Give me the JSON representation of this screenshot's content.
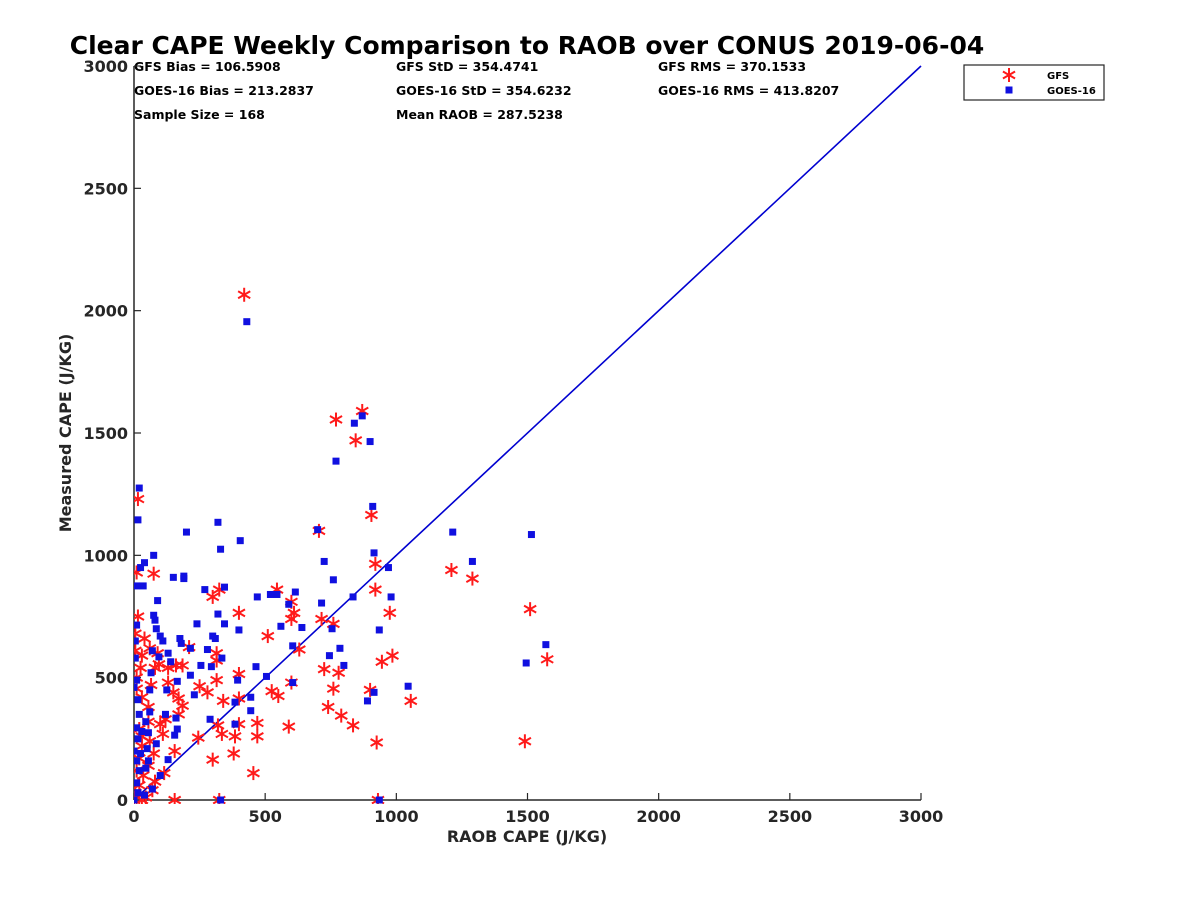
{
  "chart_data": {
    "type": "scatter",
    "title": "Clear CAPE Weekly Comparison to RAOB over CONUS 2019-06-04",
    "xlabel": "RAOB CAPE (J/KG)",
    "ylabel": "Measured CAPE (J/KG)",
    "xlim": [
      0,
      3000
    ],
    "ylim": [
      0,
      3000
    ],
    "xticks": [
      "0",
      "500",
      "1000",
      "1500",
      "2000",
      "2500",
      "3000"
    ],
    "yticks": [
      "0",
      "500",
      "1000",
      "1500",
      "2000",
      "2500",
      "3000"
    ],
    "grid": false,
    "legend_position": "top-right",
    "reference_line": {
      "x": [
        0,
        3000
      ],
      "y": [
        0,
        3000
      ],
      "color": "#0000d0"
    },
    "stats": [
      "GFS Bias = 106.5908",
      "GFS StD = 354.4741",
      "GFS RMS = 370.1533",
      "GOES-16 Bias = 213.2837",
      "GOES-16 StD = 354.6232",
      "GOES-16 RMS = 413.8207",
      "Sample Size = 168",
      "Mean RAOB = 287.5238"
    ],
    "series": [
      {
        "name": "GFS",
        "marker": "asterisk",
        "color": "#ff1a1a",
        "points": [
          [
            15,
            1230
          ],
          [
            420,
            2065
          ],
          [
            770,
            1555
          ],
          [
            870,
            1590
          ],
          [
            845,
            1470
          ],
          [
            905,
            1165
          ],
          [
            705,
            1100
          ],
          [
            10,
            930
          ],
          [
            75,
            925
          ],
          [
            920,
            965
          ],
          [
            1210,
            940
          ],
          [
            1290,
            905
          ],
          [
            1510,
            780
          ],
          [
            1575,
            575
          ],
          [
            1490,
            240
          ],
          [
            1055,
            405
          ],
          [
            975,
            765
          ],
          [
            920,
            860
          ],
          [
            985,
            590
          ],
          [
            945,
            565
          ],
          [
            900,
            450
          ],
          [
            925,
            235
          ],
          [
            930,
            0
          ],
          [
            835,
            305
          ],
          [
            790,
            345
          ],
          [
            740,
            380
          ],
          [
            780,
            520
          ],
          [
            760,
            455
          ],
          [
            725,
            535
          ],
          [
            715,
            740
          ],
          [
            760,
            720
          ],
          [
            630,
            615
          ],
          [
            600,
            740
          ],
          [
            610,
            765
          ],
          [
            600,
            810
          ],
          [
            545,
            860
          ],
          [
            510,
            670
          ],
          [
            525,
            445
          ],
          [
            550,
            425
          ],
          [
            600,
            480
          ],
          [
            590,
            300
          ],
          [
            470,
            315
          ],
          [
            470,
            260
          ],
          [
            455,
            110
          ],
          [
            400,
            765
          ],
          [
            400,
            515
          ],
          [
            400,
            415
          ],
          [
            400,
            310
          ],
          [
            385,
            260
          ],
          [
            380,
            190
          ],
          [
            340,
            405
          ],
          [
            335,
            270
          ],
          [
            320,
            305
          ],
          [
            325,
            860
          ],
          [
            300,
            830
          ],
          [
            315,
            600
          ],
          [
            315,
            570
          ],
          [
            315,
            490
          ],
          [
            280,
            440
          ],
          [
            250,
            465
          ],
          [
            245,
            255
          ],
          [
            300,
            165
          ],
          [
            325,
            0
          ],
          [
            155,
            0
          ],
          [
            210,
            625
          ],
          [
            185,
            550
          ],
          [
            160,
            550
          ],
          [
            185,
            385
          ],
          [
            170,
            350
          ],
          [
            155,
            200
          ],
          [
            130,
            480
          ],
          [
            120,
            330
          ],
          [
            110,
            270
          ],
          [
            90,
            600
          ],
          [
            80,
            540
          ],
          [
            60,
            620
          ],
          [
            65,
            470
          ],
          [
            55,
            380
          ],
          [
            55,
            320
          ],
          [
            60,
            240
          ],
          [
            75,
            190
          ],
          [
            80,
            75
          ],
          [
            70,
            40
          ],
          [
            40,
            660
          ],
          [
            30,
            590
          ],
          [
            25,
            540
          ],
          [
            10,
            500
          ],
          [
            10,
            455
          ],
          [
            15,
            750
          ],
          [
            5,
            680
          ],
          [
            5,
            610
          ],
          [
            30,
            420
          ],
          [
            20,
            290
          ],
          [
            30,
            220
          ],
          [
            20,
            170
          ],
          [
            10,
            120
          ],
          [
            35,
            100
          ],
          [
            20,
            60
          ],
          [
            5,
            30
          ],
          [
            0,
            0
          ],
          [
            45,
            10
          ],
          [
            30,
            0
          ],
          [
            150,
            440
          ],
          [
            170,
            415
          ],
          [
            100,
            310
          ],
          [
            55,
            140
          ],
          [
            95,
            555
          ],
          [
            115,
            110
          ],
          [
            130,
            540
          ],
          [
            30,
            260
          ]
        ]
      },
      {
        "name": "GOES-16",
        "marker": "square",
        "color": "#1010e0",
        "points": [
          [
            430,
            1955
          ],
          [
            870,
            1570
          ],
          [
            840,
            1540
          ],
          [
            900,
            1465
          ],
          [
            770,
            1385
          ],
          [
            910,
            1200
          ],
          [
            700,
            1105
          ],
          [
            1215,
            1095
          ],
          [
            1515,
            1085
          ],
          [
            915,
            1010
          ],
          [
            1290,
            975
          ],
          [
            970,
            950
          ],
          [
            980,
            830
          ],
          [
            1570,
            635
          ],
          [
            1495,
            560
          ],
          [
            1045,
            465
          ],
          [
            935,
            695
          ],
          [
            915,
            440
          ],
          [
            890,
            405
          ],
          [
            835,
            830
          ],
          [
            800,
            550
          ],
          [
            785,
            620
          ],
          [
            745,
            590
          ],
          [
            755,
            700
          ],
          [
            760,
            900
          ],
          [
            725,
            975
          ],
          [
            715,
            805
          ],
          [
            640,
            705
          ],
          [
            615,
            850
          ],
          [
            605,
            630
          ],
          [
            605,
            480
          ],
          [
            590,
            800
          ],
          [
            560,
            710
          ],
          [
            545,
            840
          ],
          [
            520,
            840
          ],
          [
            505,
            505
          ],
          [
            470,
            830
          ],
          [
            465,
            545
          ],
          [
            445,
            420
          ],
          [
            445,
            365
          ],
          [
            405,
            1060
          ],
          [
            400,
            695
          ],
          [
            395,
            490
          ],
          [
            385,
            400
          ],
          [
            385,
            310
          ],
          [
            345,
            870
          ],
          [
            345,
            720
          ],
          [
            335,
            580
          ],
          [
            330,
            1025
          ],
          [
            320,
            1135
          ],
          [
            320,
            760
          ],
          [
            310,
            660
          ],
          [
            300,
            670
          ],
          [
            295,
            545
          ],
          [
            290,
            330
          ],
          [
            280,
            615
          ],
          [
            270,
            860
          ],
          [
            255,
            550
          ],
          [
            240,
            720
          ],
          [
            230,
            430
          ],
          [
            215,
            620
          ],
          [
            200,
            1095
          ],
          [
            190,
            905
          ],
          [
            190,
            915
          ],
          [
            180,
            640
          ],
          [
            175,
            660
          ],
          [
            165,
            485
          ],
          [
            160,
            335
          ],
          [
            155,
            265
          ],
          [
            150,
            910
          ],
          [
            140,
            565
          ],
          [
            130,
            600
          ],
          [
            125,
            450
          ],
          [
            120,
            350
          ],
          [
            110,
            650
          ],
          [
            100,
            670
          ],
          [
            95,
            585
          ],
          [
            90,
            815
          ],
          [
            85,
            700
          ],
          [
            80,
            735
          ],
          [
            75,
            1000
          ],
          [
            75,
            755
          ],
          [
            70,
            610
          ],
          [
            65,
            520
          ],
          [
            60,
            450
          ],
          [
            55,
            275
          ],
          [
            50,
            210
          ],
          [
            45,
            130
          ],
          [
            40,
            970
          ],
          [
            35,
            875
          ],
          [
            25,
            950
          ],
          [
            20,
            1275
          ],
          [
            15,
            1145
          ],
          [
            10,
            875
          ],
          [
            10,
            715
          ],
          [
            5,
            650
          ],
          [
            5,
            580
          ],
          [
            10,
            490
          ],
          [
            0,
            460
          ],
          [
            15,
            410
          ],
          [
            20,
            350
          ],
          [
            10,
            295
          ],
          [
            15,
            250
          ],
          [
            0,
            200
          ],
          [
            10,
            160
          ],
          [
            20,
            120
          ],
          [
            10,
            70
          ],
          [
            15,
            30
          ],
          [
            0,
            0
          ],
          [
            40,
            20
          ],
          [
            70,
            45
          ],
          [
            100,
            100
          ],
          [
            330,
            0
          ],
          [
            935,
            0
          ],
          [
            60,
            360
          ],
          [
            45,
            320
          ],
          [
            30,
            280
          ],
          [
            25,
            190
          ],
          [
            55,
            160
          ],
          [
            85,
            230
          ],
          [
            165,
            290
          ],
          [
            215,
            510
          ],
          [
            130,
            165
          ]
        ]
      }
    ]
  }
}
